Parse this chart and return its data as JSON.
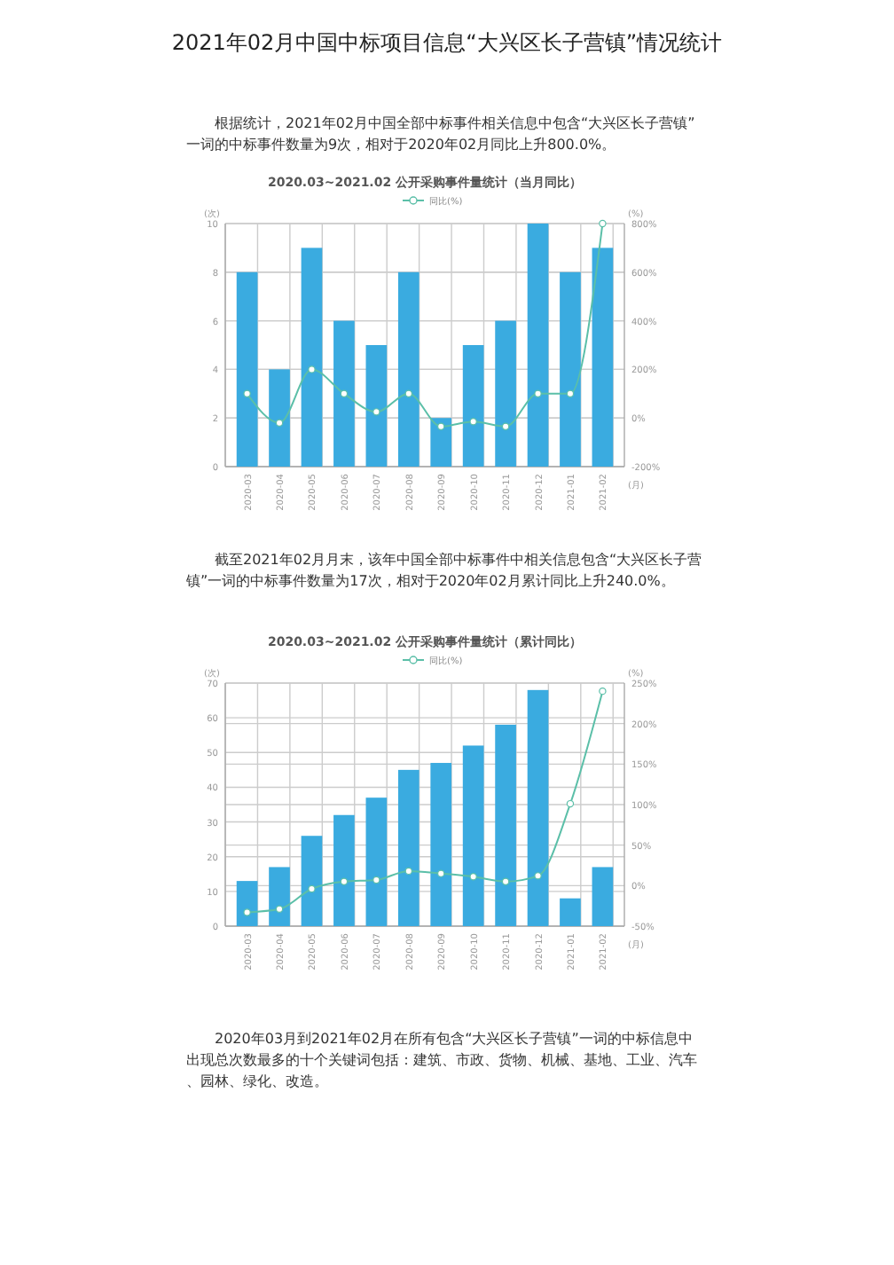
{
  "chart_data": [
    {
      "type": "bar",
      "title": "2020.03~2021.02 公开采购事件量统计（当月同比）",
      "annotations": [
        "2021年02月中国中标项目信息“大兴区长子营镇”情况统计",
        "根据统计，2021年02月中国全部中标事件相关信息中包含“大兴区长子营镇”一词的中标事件数量为9次，相对于2020年02月同比上升800.0%。"
      ],
      "xlabel": "(月)",
      "ylabel": "(次)",
      "y2label": "(%)",
      "categories": [
        "2020-03",
        "2020-04",
        "2020-05",
        "2020-06",
        "2020-07",
        "2020-08",
        "2020-09",
        "2020-10",
        "2020-11",
        "2020-12",
        "2021-01",
        "2021-02"
      ],
      "series": [
        {
          "color": "#3aabe0",
          "values": [
            8,
            4,
            9,
            6,
            5,
            8,
            2,
            5,
            6,
            10,
            8,
            9
          ]
        },
        {
          "type": "line",
          "name": "同比(%)",
          "axis": "y2",
          "color": "#5bbfa8",
          "values": [
            100,
            -20,
            200,
            100,
            25,
            100,
            -35,
            -15,
            -35,
            100,
            100,
            800
          ]
        }
      ],
      "ylim": [
        0,
        10
      ],
      "yticks": [
        0,
        2,
        4,
        6,
        8,
        10
      ],
      "y2lim": [
        -200,
        800
      ],
      "y2ticks": [
        {
          "value": -200,
          "label": "-200%"
        },
        {
          "value": 0,
          "label": "0%"
        },
        {
          "value": 200,
          "label": "200%"
        },
        {
          "value": 400,
          "label": "400%"
        },
        {
          "value": 600,
          "label": "600%"
        },
        {
          "value": 800,
          "label": "800%"
        }
      ],
      "grid": true,
      "legend": "top",
      "marker": "circle"
    },
    {
      "type": "bar",
      "title": "2020.03~2021.02 公开采购事件量统计（累计同比）",
      "annotations": [
        "截至2021年02月月末，该年中国全部中标事件中相关信息包含“大兴区长子营镇”一词的中标事件数量为17次，相对于2020年02月累计同比上升240.0%。",
        "2020年03月到2021年02月在所有包含“大兴区长子营镇”一词的中标信息中出现总次数最多的十个关键词包括：建筑、市政、货物、机械、基地、工业、汽车、园林、绿化、改造。"
      ],
      "xlabel": "(月)",
      "ylabel": "(次)",
      "y2label": "(%)",
      "categories": [
        "2020-03",
        "2020-04",
        "2020-05",
        "2020-06",
        "2020-07",
        "2020-08",
        "2020-09",
        "2020-10",
        "2020-11",
        "2020-12",
        "2021-01",
        "2021-02"
      ],
      "series": [
        {
          "color": "#3aabe0",
          "values": [
            13,
            17,
            26,
            32,
            37,
            45,
            47,
            52,
            58,
            68,
            8,
            17
          ]
        },
        {
          "type": "line",
          "name": "同比(%)",
          "axis": "y2",
          "color": "#5bbfa8",
          "values": [
            -33,
            -29,
            -4,
            5,
            7,
            18,
            15,
            11,
            5,
            12,
            101,
            240
          ]
        }
      ],
      "ylim": [
        0,
        70
      ],
      "yticks": [
        0,
        10,
        20,
        30,
        40,
        50,
        60,
        70
      ],
      "y2lim": [
        -50,
        250
      ],
      "y2ticks": [
        {
          "value": -50,
          "label": "-50%"
        },
        {
          "value": 0,
          "label": "0%"
        },
        {
          "value": 50,
          "label": "50%"
        },
        {
          "value": 100,
          "label": "100%"
        },
        {
          "value": 150,
          "label": "150%"
        },
        {
          "value": 200,
          "label": "200%"
        },
        {
          "value": 250,
          "label": "250%"
        }
      ],
      "grid": true,
      "legend": "top",
      "marker": "circle"
    }
  ]
}
